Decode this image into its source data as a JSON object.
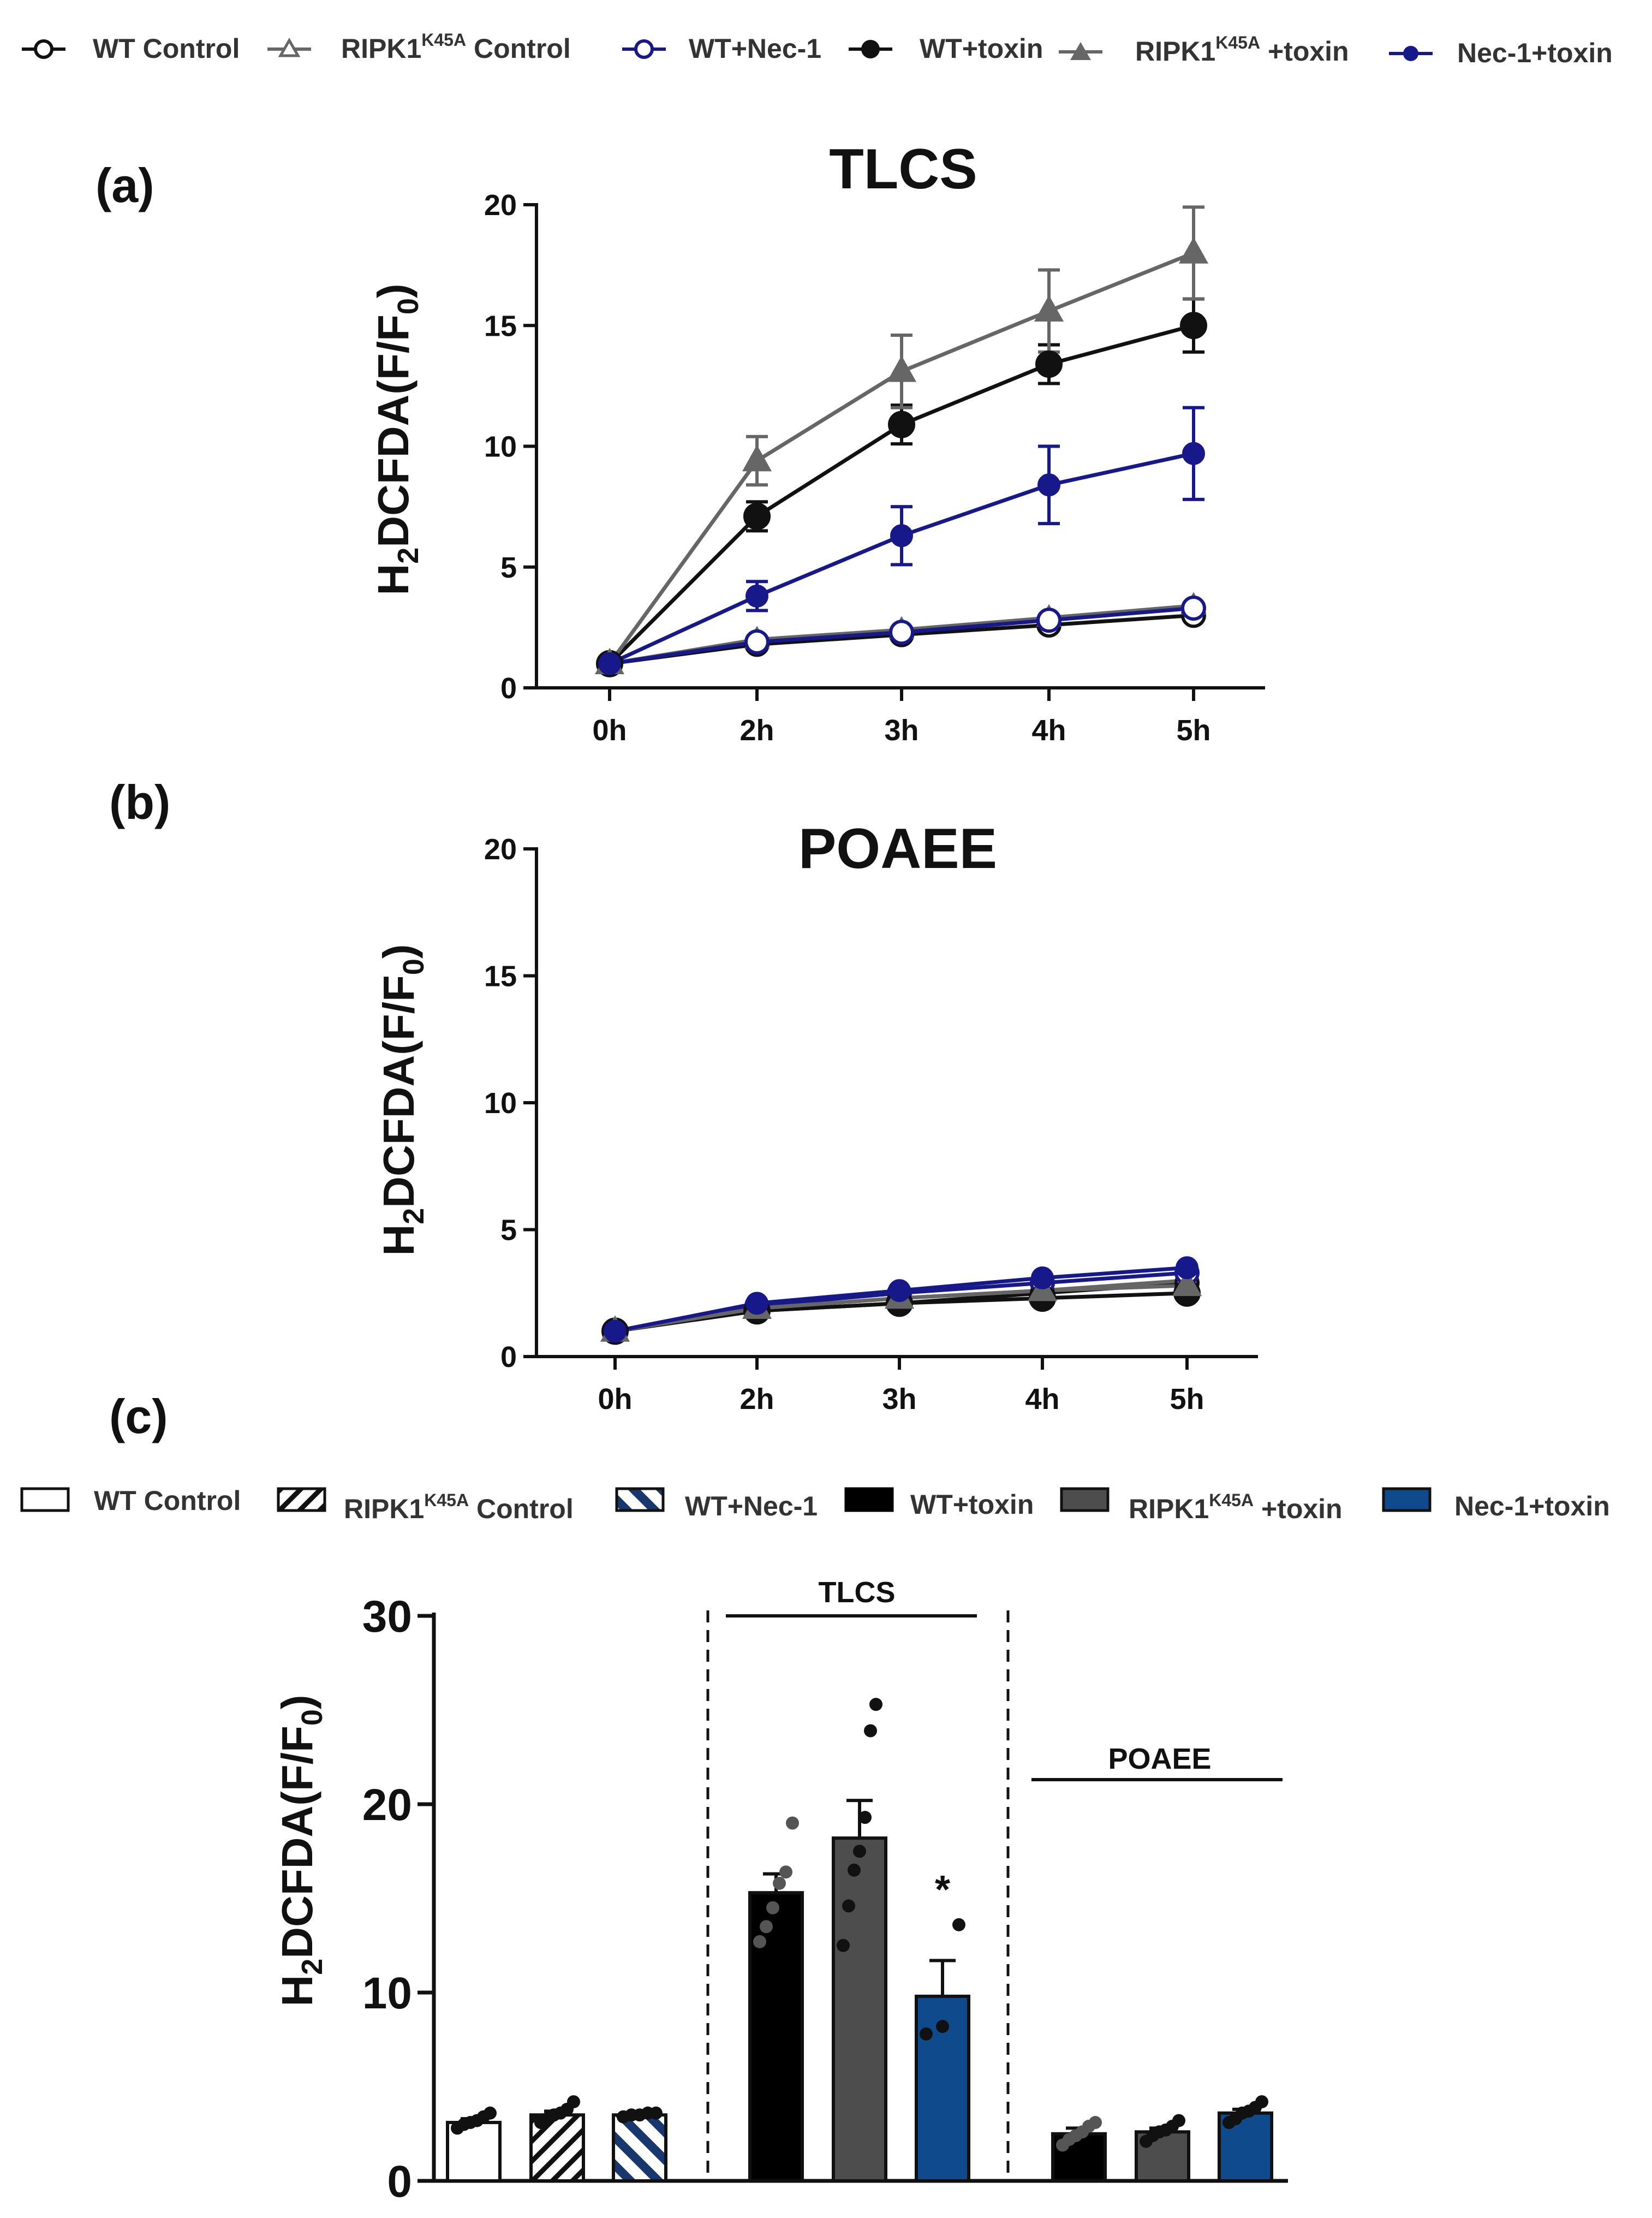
{
  "line_legend": {
    "items": [
      {
        "key": "wt_control",
        "label": "WT Control",
        "sup": "",
        "rest": ""
      },
      {
        "key": "ripk_control",
        "label": "RIPK1",
        "sup": "K45A",
        "rest": " Control"
      },
      {
        "key": "wt_nec1",
        "label": "WT+Nec-1",
        "sup": "",
        "rest": ""
      },
      {
        "key": "wt_toxin",
        "label": "WT+toxin",
        "sup": "",
        "rest": ""
      },
      {
        "key": "ripk_toxin",
        "label": "RIPK1",
        "sup": "K45A",
        "rest": " +toxin"
      },
      {
        "key": "nec1_toxin",
        "label": "Nec-1+toxin",
        "sup": "",
        "rest": ""
      }
    ]
  },
  "bar_legend": {
    "items": [
      {
        "key": "wt_control",
        "label": "WT Control",
        "sup": "",
        "rest": ""
      },
      {
        "key": "ripk_control",
        "label": "RIPK1",
        "sup": "K45A",
        "rest": " Control"
      },
      {
        "key": "wt_nec1",
        "label": "WT+Nec-1",
        "sup": "",
        "rest": ""
      },
      {
        "key": "wt_toxin",
        "label": "WT+toxin",
        "sup": "",
        "rest": ""
      },
      {
        "key": "ripk_toxin",
        "label": "RIPK1",
        "sup": "K45A",
        "rest": " +toxin"
      },
      {
        "key": "nec1_toxin",
        "label": "Nec-1+toxin",
        "sup": "",
        "rest": ""
      }
    ]
  },
  "colors": {
    "black": "#111111",
    "gray": "#666666",
    "navy": "#17188a",
    "bar_white": "#ffffff",
    "bar_black": "#000000",
    "bar_gray": "#4d4d4d",
    "bar_blue": "#0f4a8c"
  },
  "chart_data": [
    {
      "id": "a",
      "panel_label": "(a)",
      "type": "line",
      "title": "TLCS",
      "ylabel": {
        "main": "H",
        "sub": "2",
        "rest": "DCFDA(F/F",
        "sub2": "0",
        "close": ")"
      },
      "xlabel": "",
      "categories": [
        "0h",
        "2h",
        "3h",
        "4h",
        "5h"
      ],
      "ylim": [
        0,
        20
      ],
      "yticks": [
        0,
        5,
        10,
        15,
        20
      ],
      "series": [
        {
          "name": "WT Control",
          "key": "wt_control",
          "values": [
            1.0,
            1.8,
            2.2,
            2.6,
            3.0
          ],
          "err": [
            0.1,
            0.15,
            0.15,
            0.2,
            0.2
          ]
        },
        {
          "name": "RIPK1K45A Control",
          "key": "ripk_control",
          "values": [
            1.0,
            2.0,
            2.4,
            2.9,
            3.4
          ],
          "err": [
            0.1,
            0.15,
            0.15,
            0.2,
            0.2
          ]
        },
        {
          "name": "WT+Nec-1",
          "key": "wt_nec1",
          "values": [
            1.0,
            1.9,
            2.3,
            2.8,
            3.3
          ],
          "err": [
            0.1,
            0.15,
            0.15,
            0.2,
            0.2
          ]
        },
        {
          "name": "WT+toxin",
          "key": "wt_toxin",
          "values": [
            1.0,
            7.1,
            10.9,
            13.4,
            15.0
          ],
          "err": [
            0.1,
            0.6,
            0.8,
            0.8,
            1.1
          ]
        },
        {
          "name": "RIPK1K45A +toxin",
          "key": "ripk_toxin",
          "values": [
            1.0,
            9.4,
            13.1,
            15.6,
            18.0
          ],
          "err": [
            0.1,
            1.0,
            1.5,
            1.7,
            1.9
          ]
        },
        {
          "name": "Nec-1+toxin",
          "key": "nec1_toxin",
          "values": [
            1.0,
            3.8,
            6.3,
            8.4,
            9.7
          ],
          "err": [
            0.1,
            0.6,
            1.2,
            1.6,
            1.9
          ]
        }
      ]
    },
    {
      "id": "b",
      "panel_label": "(b)",
      "type": "line",
      "title": "POAEE",
      "ylabel": {
        "main": "H",
        "sub": "2",
        "rest": "DCFDA(F/F",
        "sub2": "0",
        "close": ")"
      },
      "xlabel": "",
      "categories": [
        "0h",
        "2h",
        "3h",
        "4h",
        "5h"
      ],
      "ylim": [
        0,
        20
      ],
      "yticks": [
        0,
        5,
        10,
        15,
        20
      ],
      "series": [
        {
          "name": "WT Control",
          "key": "wt_control",
          "values": [
            1.0,
            1.8,
            2.1,
            2.5,
            2.9
          ],
          "err": [
            0,
            0,
            0,
            0,
            0
          ]
        },
        {
          "name": "RIPK1K45A Control",
          "key": "ripk_control",
          "values": [
            1.0,
            1.9,
            2.3,
            2.6,
            3.0
          ],
          "err": [
            0,
            0,
            0,
            0,
            0
          ]
        },
        {
          "name": "WT+Nec-1",
          "key": "wt_nec1",
          "values": [
            1.0,
            2.0,
            2.5,
            2.9,
            3.3
          ],
          "err": [
            0,
            0,
            0,
            0,
            0
          ]
        },
        {
          "name": "WT+toxin",
          "key": "wt_toxin",
          "values": [
            1.0,
            1.8,
            2.1,
            2.3,
            2.5
          ],
          "err": [
            0,
            0,
            0,
            0,
            0
          ]
        },
        {
          "name": "RIPK1K45A +toxin",
          "key": "ripk_toxin",
          "values": [
            1.0,
            1.9,
            2.3,
            2.6,
            2.8
          ],
          "err": [
            0,
            0,
            0,
            0,
            0
          ]
        },
        {
          "name": "Nec-1+toxin",
          "key": "nec1_toxin",
          "values": [
            1.0,
            2.1,
            2.6,
            3.1,
            3.5
          ],
          "err": [
            0,
            0,
            0,
            0,
            0
          ]
        }
      ]
    },
    {
      "id": "c",
      "panel_label": "(c)",
      "type": "bar",
      "title": "",
      "ylabel": {
        "main": "H",
        "sub": "2",
        "rest": "DCFDA(F/F",
        "sub2": "0",
        "close": ")"
      },
      "ylim": [
        0,
        30
      ],
      "yticks": [
        0,
        10,
        20,
        30
      ],
      "group_labels": [
        "TLCS",
        "POAEE"
      ],
      "significance": "*",
      "bars": [
        {
          "key": "wt_control",
          "group": "control",
          "value": 3.1,
          "err": 0.2,
          "points": [
            2.8,
            3.0,
            3.1,
            3.2,
            3.4,
            3.6
          ]
        },
        {
          "key": "ripk_control",
          "group": "control",
          "value": 3.5,
          "err": 0.2,
          "points": [
            3.1,
            3.3,
            3.5,
            3.6,
            3.8,
            4.2
          ]
        },
        {
          "key": "wt_nec1",
          "group": "control",
          "value": 3.5,
          "err": 0.1,
          "points": [
            3.4,
            3.5,
            3.5,
            3.6,
            3.6
          ]
        },
        {
          "key": "wt_toxin",
          "group": "TLCS",
          "value": 15.3,
          "err": 1.0,
          "points": [
            12.7,
            13.5,
            14.5,
            15.8,
            16.4,
            19.0
          ]
        },
        {
          "key": "ripk_toxin",
          "group": "TLCS",
          "value": 18.2,
          "err": 2.0,
          "points": [
            12.5,
            14.6,
            16.5,
            17.5,
            19.3,
            23.9,
            25.3
          ]
        },
        {
          "key": "nec1_toxin",
          "group": "TLCS",
          "value": 9.8,
          "err": 1.9,
          "points": [
            7.8,
            8.2,
            13.6
          ]
        },
        {
          "key": "wt_toxin",
          "group": "POAEE",
          "value": 2.5,
          "err": 0.3,
          "points": [
            1.9,
            2.2,
            2.4,
            2.6,
            2.9,
            3.1
          ]
        },
        {
          "key": "ripk_toxin",
          "group": "POAEE",
          "value": 2.6,
          "err": 0.2,
          "points": [
            2.1,
            2.4,
            2.6,
            2.7,
            2.9,
            3.2
          ]
        },
        {
          "key": "nec1_toxin",
          "group": "POAEE",
          "value": 3.6,
          "err": 0.2,
          "points": [
            3.1,
            3.3,
            3.6,
            3.7,
            3.9,
            4.2
          ]
        }
      ]
    }
  ]
}
